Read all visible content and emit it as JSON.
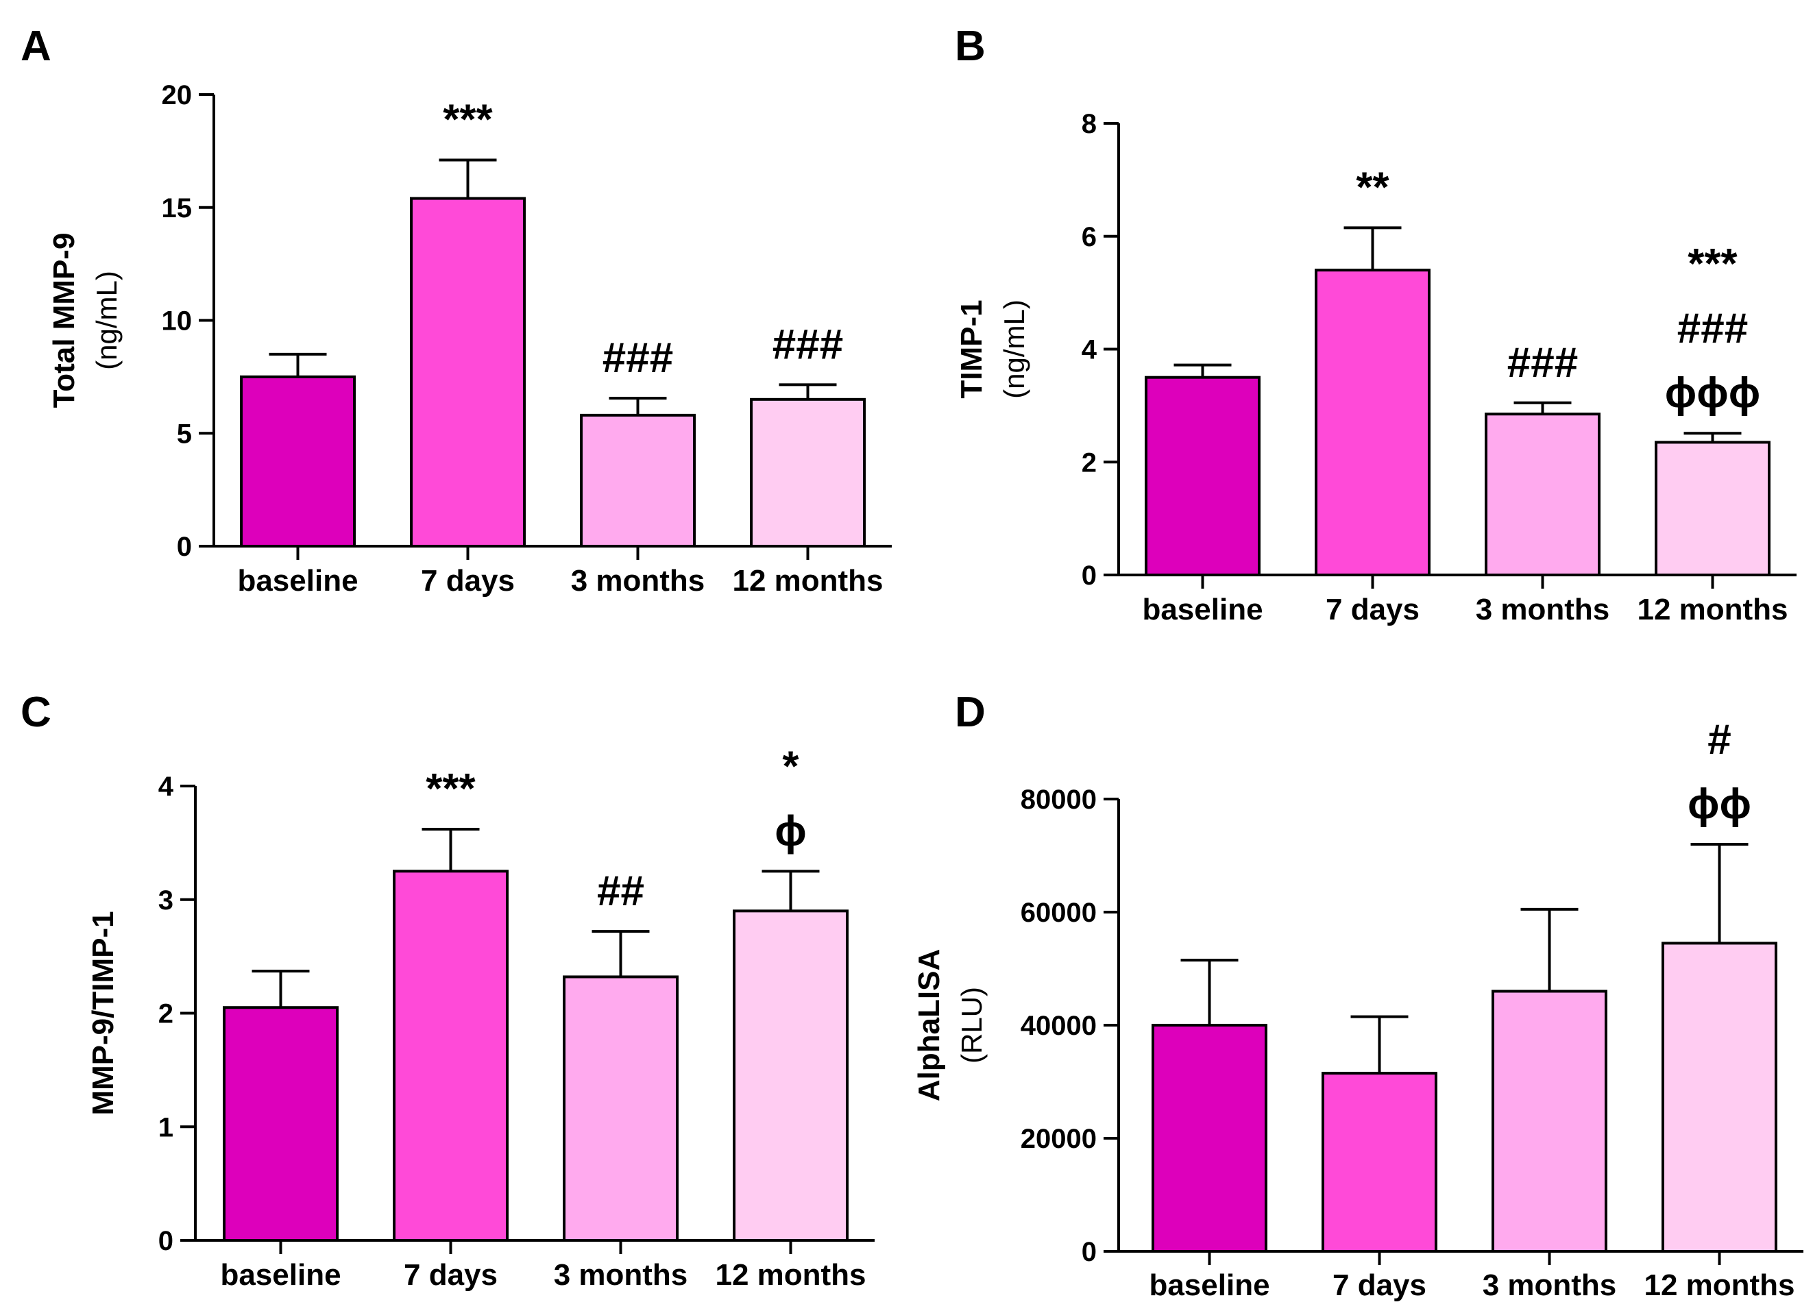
{
  "chart_data": [
    {
      "panel": "A",
      "type": "bar",
      "ylabel": "Total MMP-9",
      "yunit": "(ng/mL)",
      "ylim": [
        0,
        20
      ],
      "yticks": [
        "0",
        "5",
        "10",
        "15",
        "20"
      ],
      "ytick_values": [
        0,
        5,
        10,
        15,
        20
      ],
      "categories": [
        "baseline",
        "7 days",
        "3 months",
        "12 months"
      ],
      "values": [
        7.5,
        15.4,
        5.8,
        6.5
      ],
      "errors": [
        1.0,
        1.7,
        0.75,
        0.65
      ],
      "colors": [
        "#dd00bb",
        "#ff4ad8",
        "#ffaaee",
        "#ffccf2"
      ],
      "annotations": [
        [],
        [
          "***"
        ],
        [
          "###"
        ],
        [
          "###"
        ]
      ]
    },
    {
      "panel": "B",
      "type": "bar",
      "ylabel": "TIMP-1",
      "yunit": "(ng/mL)",
      "ylim": [
        0,
        8
      ],
      "yticks": [
        "0",
        "2",
        "4",
        "6",
        "8"
      ],
      "ytick_values": [
        0,
        2,
        4,
        6,
        8
      ],
      "categories": [
        "baseline",
        "7 days",
        "3 months",
        "12 months"
      ],
      "values": [
        3.5,
        5.4,
        2.85,
        2.35
      ],
      "errors": [
        0.22,
        0.75,
        0.2,
        0.16
      ],
      "colors": [
        "#dd00bb",
        "#ff4ad8",
        "#ffaaee",
        "#ffccf2"
      ],
      "annotations": [
        [],
        [
          "**"
        ],
        [
          "###"
        ],
        [
          "***",
          "###",
          "ϕϕϕ"
        ]
      ]
    },
    {
      "panel": "C",
      "type": "bar",
      "ylabel": "MMP-9/TIMP-1",
      "yunit": "",
      "ylim": [
        0,
        4
      ],
      "yticks": [
        "0",
        "1",
        "2",
        "3",
        "4"
      ],
      "ytick_values": [
        0,
        1,
        2,
        3,
        4
      ],
      "categories": [
        "baseline",
        "7 days",
        "3 months",
        "12 months"
      ],
      "values": [
        2.05,
        3.25,
        2.32,
        2.9
      ],
      "errors": [
        0.32,
        0.37,
        0.4,
        0.35
      ],
      "colors": [
        "#dd00bb",
        "#ff4ad8",
        "#ffaaee",
        "#ffccf2"
      ],
      "annotations": [
        [],
        [
          "***"
        ],
        [
          "##"
        ],
        [
          "*",
          "ϕ"
        ]
      ]
    },
    {
      "panel": "D",
      "type": "bar",
      "ylabel": "AlphaLISA",
      "yunit": "(RLU)",
      "ylim": [
        0,
        80000
      ],
      "yticks": [
        "0",
        "20000",
        "40000",
        "60000",
        "80000"
      ],
      "ytick_values": [
        0,
        20000,
        40000,
        60000,
        80000
      ],
      "categories": [
        "baseline",
        "7 days",
        "3 months",
        "12 months"
      ],
      "values": [
        40000,
        31500,
        46000,
        54500
      ],
      "errors": [
        11500,
        10000,
        14500,
        17500
      ],
      "colors": [
        "#dd00bb",
        "#ff4ad8",
        "#ffaaee",
        "#ffccf2"
      ],
      "annotations": [
        [],
        [],
        [],
        [
          "#",
          "ϕϕ"
        ]
      ]
    }
  ]
}
